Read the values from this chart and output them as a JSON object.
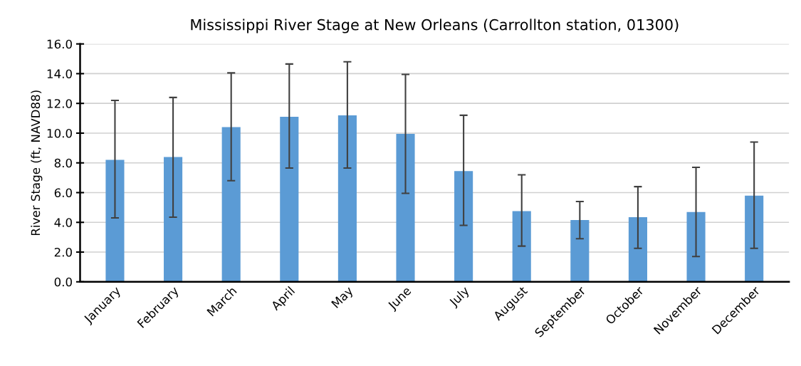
{
  "chart_data": {
    "type": "bar",
    "title": "Mississippi River Stage at New Orleans (Carrollton station, 01300)",
    "ylabel": "River Stage (ft, NAVD88)",
    "categories": [
      "January",
      "February",
      "March",
      "April",
      "May",
      "June",
      "July",
      "August",
      "September",
      "October",
      "November",
      "December"
    ],
    "values": [
      8.2,
      8.4,
      10.4,
      11.1,
      11.2,
      9.95,
      7.45,
      4.75,
      4.15,
      4.35,
      4.7,
      5.8
    ],
    "errors": [
      [
        4.3,
        12.2
      ],
      [
        4.35,
        12.4
      ],
      [
        6.8,
        14.05
      ],
      [
        7.65,
        14.65
      ],
      [
        7.65,
        14.8
      ],
      [
        5.95,
        13.95
      ],
      [
        3.8,
        11.2
      ],
      [
        2.4,
        7.2
      ],
      [
        2.9,
        5.4
      ],
      [
        2.25,
        6.4
      ],
      [
        1.7,
        7.7
      ],
      [
        2.25,
        9.4
      ]
    ],
    "color": "#5b9bd5",
    "ylim": [
      0,
      16
    ],
    "yticks": [
      {
        "value": 0,
        "label": "0.0"
      },
      {
        "value": 2,
        "label": "2.0"
      },
      {
        "value": 4,
        "label": "4.0"
      },
      {
        "value": 6,
        "label": "6.0"
      },
      {
        "value": 8,
        "label": "8.0"
      },
      {
        "value": 10,
        "label": "10.0"
      },
      {
        "value": 12,
        "label": "12.0"
      },
      {
        "value": 14,
        "label": "14.0"
      },
      {
        "value": 16,
        "label": "16.0"
      }
    ],
    "grid": "y"
  }
}
